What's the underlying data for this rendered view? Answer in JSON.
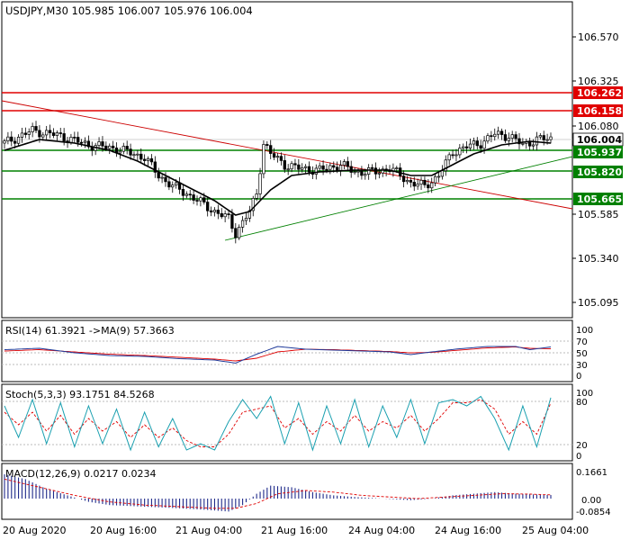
{
  "symbol_header": "USDJPY,M30  105.985 106.007 105.976 106.004",
  "colors": {
    "background": "#ffffff",
    "frame": "#000000",
    "candle": "#000000",
    "ma": "#000000",
    "resistance": "#e00000",
    "support": "#008000",
    "trend_down": "#cc0000",
    "trend_up": "#008000",
    "rsi_line": "#1f3a9a",
    "rsi_ma": "#e00000",
    "stoch_main": "#1aa0b0",
    "stoch_signal": "#e00000",
    "macd_hist": "#1f2a8a",
    "macd_signal": "#e00000"
  },
  "price_axis": {
    "ticks": [
      "106.570",
      "106.325",
      "106.080",
      "105.585",
      "105.340",
      "105.095"
    ],
    "levels": [
      {
        "label": "106.262",
        "type": "resistance"
      },
      {
        "label": "106.158",
        "type": "resistance"
      },
      {
        "label": "106.004",
        "type": "current"
      },
      {
        "label": "105.937",
        "type": "support"
      },
      {
        "label": "105.820",
        "type": "support"
      },
      {
        "label": "105.665",
        "type": "support"
      }
    ]
  },
  "time_axis": {
    "labels": [
      "20 Aug 2020",
      "20 Aug 16:00",
      "21 Aug 04:00",
      "21 Aug 16:00",
      "24 Aug 04:00",
      "24 Aug 16:00",
      "25 Aug 04:00"
    ]
  },
  "rsi": {
    "title": "RSI(14) 61.3921  ->MA(9) 57.3663",
    "axis": [
      "100",
      "70",
      "50",
      "30",
      "0"
    ]
  },
  "stoch": {
    "title": "Stoch(5,3,3) 93.1751 84.5268",
    "axis": [
      "100",
      "80",
      "20",
      "0"
    ]
  },
  "macd": {
    "title": "MACD(12,26,9) 0.0217 0.0234",
    "axis": [
      "0.1661",
      "0.00",
      "-0.0854"
    ]
  },
  "chart_data": {
    "type": "candlestick",
    "title": "USDJPY,M30",
    "ohlc_last": {
      "open": 105.985,
      "high": 106.007,
      "low": 105.976,
      "close": 106.004
    },
    "price_range": [
      104.95,
      106.72
    ],
    "resistance_levels": [
      106.262,
      106.158
    ],
    "support_levels": [
      105.937,
      105.82,
      105.665
    ],
    "current_price": 106.004,
    "close_path": [
      [
        0,
        105.98
      ],
      [
        8,
        106.05
      ],
      [
        16,
        106.02
      ],
      [
        24,
        105.97
      ],
      [
        32,
        105.95
      ],
      [
        40,
        105.9
      ],
      [
        44,
        105.8
      ],
      [
        48,
        105.74
      ],
      [
        52,
        105.7
      ],
      [
        56,
        105.65
      ],
      [
        60,
        105.6
      ],
      [
        64,
        105.56
      ],
      [
        66,
        105.48
      ],
      [
        70,
        105.6
      ],
      [
        72,
        105.7
      ],
      [
        74,
        105.98
      ],
      [
        76,
        105.92
      ],
      [
        80,
        105.86
      ],
      [
        84,
        105.84
      ],
      [
        90,
        105.83
      ],
      [
        96,
        105.86
      ],
      [
        100,
        105.82
      ],
      [
        106,
        105.82
      ],
      [
        110,
        105.84
      ],
      [
        116,
        105.76
      ],
      [
        120,
        105.74
      ],
      [
        124,
        105.8
      ],
      [
        128,
        105.93
      ],
      [
        132,
        105.96
      ],
      [
        136,
        105.98
      ],
      [
        140,
        106.03
      ],
      [
        144,
        106.02
      ],
      [
        148,
        105.97
      ],
      [
        152,
        106.0
      ],
      [
        156,
        106.004
      ]
    ],
    "ma_path": [
      [
        0,
        105.94
      ],
      [
        10,
        106.0
      ],
      [
        20,
        105.98
      ],
      [
        30,
        105.94
      ],
      [
        38,
        105.88
      ],
      [
        46,
        105.8
      ],
      [
        54,
        105.72
      ],
      [
        60,
        105.66
      ],
      [
        66,
        105.58
      ],
      [
        70,
        105.6
      ],
      [
        76,
        105.72
      ],
      [
        82,
        105.8
      ],
      [
        90,
        105.82
      ],
      [
        100,
        105.83
      ],
      [
        110,
        105.83
      ],
      [
        116,
        105.8
      ],
      [
        122,
        105.8
      ],
      [
        128,
        105.86
      ],
      [
        134,
        105.92
      ],
      [
        142,
        105.97
      ],
      [
        150,
        105.99
      ],
      [
        156,
        105.98
      ]
    ],
    "rsi_values": [
      [
        0,
        55
      ],
      [
        10,
        58
      ],
      [
        20,
        48
      ],
      [
        30,
        42
      ],
      [
        40,
        40
      ],
      [
        50,
        35
      ],
      [
        60,
        32
      ],
      [
        66,
        25
      ],
      [
        72,
        45
      ],
      [
        78,
        62
      ],
      [
        86,
        56
      ],
      [
        94,
        54
      ],
      [
        102,
        52
      ],
      [
        110,
        50
      ],
      [
        116,
        44
      ],
      [
        122,
        50
      ],
      [
        130,
        57
      ],
      [
        138,
        62
      ],
      [
        146,
        62
      ],
      [
        150,
        55
      ],
      [
        156,
        61
      ]
    ],
    "rsi_ma_values": [
      [
        0,
        52
      ],
      [
        10,
        55
      ],
      [
        20,
        50
      ],
      [
        30,
        45
      ],
      [
        40,
        42
      ],
      [
        50,
        38
      ],
      [
        60,
        34
      ],
      [
        66,
        30
      ],
      [
        72,
        36
      ],
      [
        78,
        50
      ],
      [
        86,
        56
      ],
      [
        94,
        55
      ],
      [
        102,
        53
      ],
      [
        110,
        51
      ],
      [
        116,
        48
      ],
      [
        122,
        49
      ],
      [
        130,
        54
      ],
      [
        138,
        59
      ],
      [
        146,
        61
      ],
      [
        150,
        58
      ],
      [
        156,
        57
      ]
    ],
    "stoch_values": [
      [
        0,
        80
      ],
      [
        4,
        30
      ],
      [
        8,
        90
      ],
      [
        12,
        20
      ],
      [
        16,
        85
      ],
      [
        20,
        15
      ],
      [
        24,
        80
      ],
      [
        28,
        20
      ],
      [
        32,
        75
      ],
      [
        36,
        10
      ],
      [
        40,
        70
      ],
      [
        44,
        15
      ],
      [
        48,
        60
      ],
      [
        52,
        10
      ],
      [
        56,
        20
      ],
      [
        60,
        10
      ],
      [
        64,
        55
      ],
      [
        68,
        90
      ],
      [
        72,
        60
      ],
      [
        76,
        95
      ],
      [
        80,
        20
      ],
      [
        84,
        85
      ],
      [
        88,
        10
      ],
      [
        92,
        80
      ],
      [
        96,
        20
      ],
      [
        100,
        90
      ],
      [
        104,
        15
      ],
      [
        108,
        80
      ],
      [
        112,
        30
      ],
      [
        116,
        90
      ],
      [
        120,
        20
      ],
      [
        124,
        85
      ],
      [
        128,
        90
      ],
      [
        132,
        80
      ],
      [
        136,
        95
      ],
      [
        140,
        60
      ],
      [
        144,
        10
      ],
      [
        148,
        80
      ],
      [
        152,
        15
      ],
      [
        156,
        93
      ]
    ],
    "stoch_signal_values": [
      [
        0,
        70
      ],
      [
        4,
        50
      ],
      [
        8,
        70
      ],
      [
        12,
        40
      ],
      [
        16,
        65
      ],
      [
        20,
        35
      ],
      [
        24,
        60
      ],
      [
        28,
        40
      ],
      [
        32,
        55
      ],
      [
        36,
        30
      ],
      [
        40,
        50
      ],
      [
        44,
        30
      ],
      [
        48,
        45
      ],
      [
        52,
        25
      ],
      [
        56,
        15
      ],
      [
        60,
        15
      ],
      [
        64,
        35
      ],
      [
        68,
        70
      ],
      [
        72,
        75
      ],
      [
        76,
        80
      ],
      [
        80,
        45
      ],
      [
        84,
        60
      ],
      [
        88,
        35
      ],
      [
        92,
        55
      ],
      [
        96,
        40
      ],
      [
        100,
        65
      ],
      [
        104,
        40
      ],
      [
        108,
        55
      ],
      [
        112,
        45
      ],
      [
        116,
        65
      ],
      [
        120,
        40
      ],
      [
        124,
        60
      ],
      [
        128,
        85
      ],
      [
        132,
        85
      ],
      [
        136,
        90
      ],
      [
        140,
        75
      ],
      [
        144,
        35
      ],
      [
        148,
        55
      ],
      [
        152,
        35
      ],
      [
        156,
        84.5
      ]
    ],
    "macd_hist_values": [
      [
        0,
        0.15
      ],
      [
        6,
        0.12
      ],
      [
        12,
        0.06
      ],
      [
        18,
        0.02
      ],
      [
        24,
        -0.02
      ],
      [
        30,
        -0.04
      ],
      [
        40,
        -0.05
      ],
      [
        50,
        -0.06
      ],
      [
        58,
        -0.07
      ],
      [
        64,
        -0.08
      ],
      [
        68,
        -0.04
      ],
      [
        72,
        0.03
      ],
      [
        76,
        0.08
      ],
      [
        82,
        0.07
      ],
      [
        88,
        0.04
      ],
      [
        94,
        0.02
      ],
      [
        100,
        0.01
      ],
      [
        108,
        0.0
      ],
      [
        116,
        -0.01
      ],
      [
        122,
        0.0
      ],
      [
        128,
        0.02
      ],
      [
        134,
        0.03
      ],
      [
        140,
        0.04
      ],
      [
        146,
        0.03
      ],
      [
        152,
        0.025
      ],
      [
        156,
        0.022
      ]
    ],
    "macd_signal_values": [
      [
        0,
        0.12
      ],
      [
        10,
        0.07
      ],
      [
        20,
        0.02
      ],
      [
        30,
        -0.02
      ],
      [
        40,
        -0.04
      ],
      [
        50,
        -0.05
      ],
      [
        60,
        -0.06
      ],
      [
        66,
        -0.06
      ],
      [
        72,
        -0.03
      ],
      [
        78,
        0.03
      ],
      [
        86,
        0.05
      ],
      [
        94,
        0.04
      ],
      [
        102,
        0.02
      ],
      [
        110,
        0.01
      ],
      [
        118,
        0.0
      ],
      [
        126,
        0.01
      ],
      [
        134,
        0.02
      ],
      [
        142,
        0.03
      ],
      [
        150,
        0.028
      ],
      [
        156,
        0.023
      ]
    ]
  }
}
